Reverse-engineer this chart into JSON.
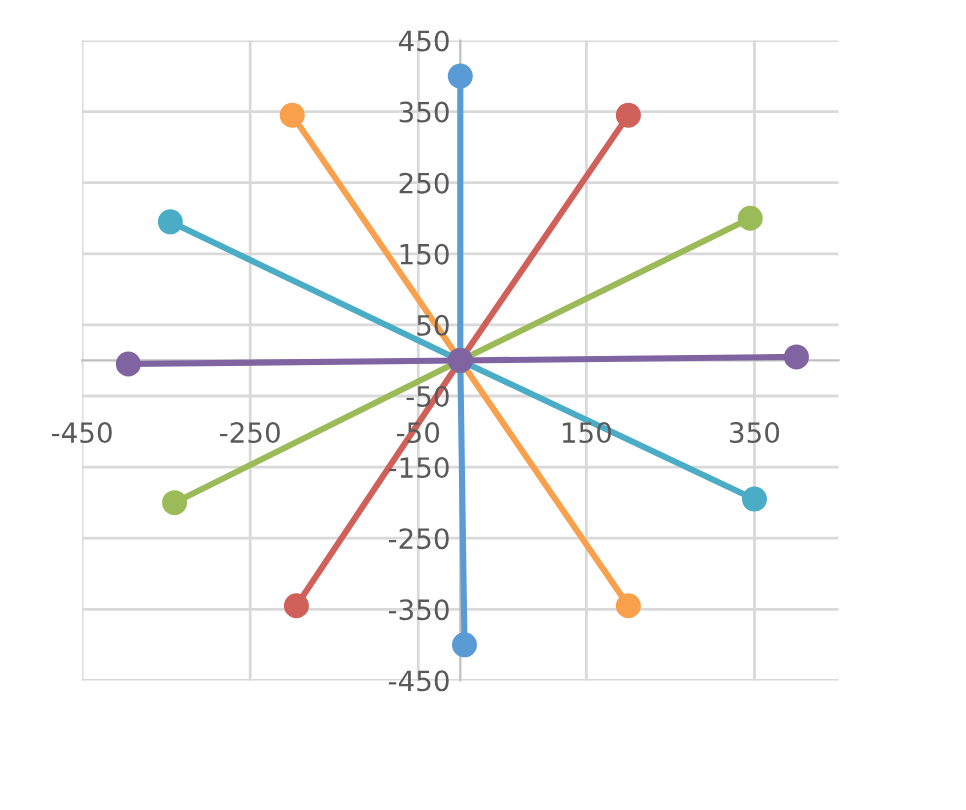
{
  "chart_data": {
    "type": "line",
    "marker": "circle",
    "line_style": "solid",
    "grid": true,
    "legend": false,
    "xlim": [
      -450,
      450
    ],
    "xticks": [
      -450,
      -250,
      -50,
      150,
      350
    ],
    "ylim": [
      -450,
      450
    ],
    "yticks": [
      -450,
      -350,
      -250,
      -150,
      -50,
      50,
      150,
      250,
      350,
      450
    ],
    "series": [
      {
        "color": "#5b9bd5",
        "x": [
          0,
          0,
          5
        ],
        "values": [
          400,
          0,
          -400
        ]
      },
      {
        "color": "#f9a04c",
        "x": [
          -200,
          0,
          200
        ],
        "values": [
          345,
          0,
          -345
        ]
      },
      {
        "color": "#d0605a",
        "x": [
          -195,
          0,
          200
        ],
        "values": [
          -345,
          0,
          345
        ]
      },
      {
        "color": "#9bbb59",
        "x": [
          -340,
          0,
          345
        ],
        "values": [
          -200,
          0,
          200
        ]
      },
      {
        "color": "#4bacc6",
        "x": [
          -345,
          0,
          350
        ],
        "values": [
          195,
          0,
          -195
        ]
      },
      {
        "color": "#8064a2",
        "x": [
          -395,
          0,
          400
        ],
        "values": [
          -5,
          0,
          5
        ]
      }
    ]
  }
}
